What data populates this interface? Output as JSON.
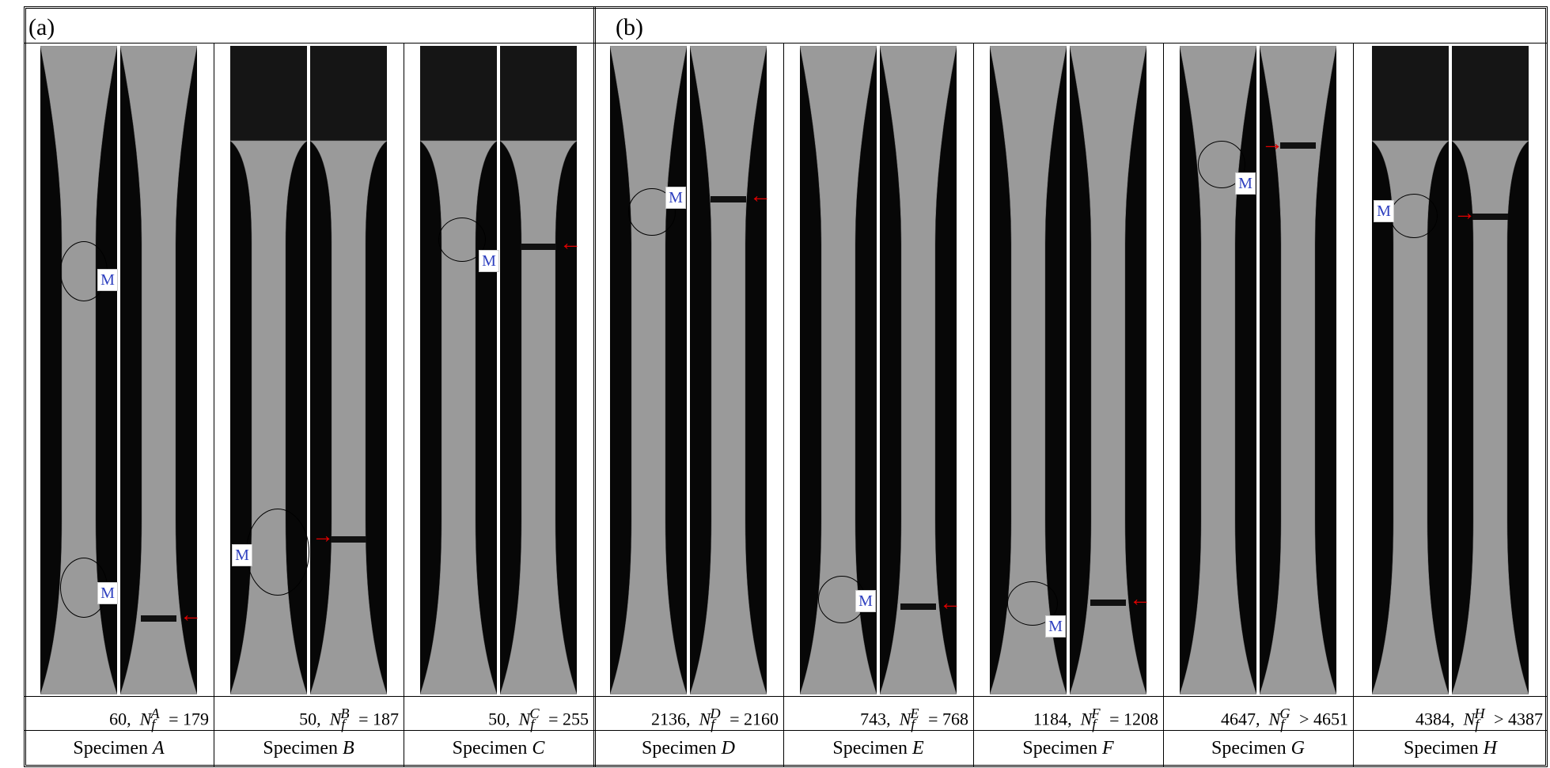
{
  "panels": {
    "a": "(a)",
    "b": "(b)"
  },
  "marker_label": "M",
  "colors": {
    "crack_arrow": "#e00000",
    "marker_text": "#2d3fbf"
  },
  "specimens": [
    {
      "id": "A",
      "prefix": "Specimen",
      "cycles": "60,",
      "nf_sym": "N",
      "nf_sub": "f",
      "nf_sup": "A",
      "nf_rel": "=",
      "nf_val": "179"
    },
    {
      "id": "B",
      "prefix": "Specimen",
      "cycles": "50,",
      "nf_sym": "N",
      "nf_sub": "f",
      "nf_sup": "B",
      "nf_rel": "=",
      "nf_val": "187"
    },
    {
      "id": "C",
      "prefix": "Specimen",
      "cycles": "50,",
      "nf_sym": "N",
      "nf_sub": "f",
      "nf_sup": "C",
      "nf_rel": "=",
      "nf_val": "255"
    },
    {
      "id": "D",
      "prefix": "Specimen",
      "cycles": "2136,",
      "nf_sym": "N",
      "nf_sub": "f",
      "nf_sup": "D",
      "nf_rel": "=",
      "nf_val": "2160"
    },
    {
      "id": "E",
      "prefix": "Specimen",
      "cycles": "743,",
      "nf_sym": "N",
      "nf_sub": "f",
      "nf_sup": "E",
      "nf_rel": "=",
      "nf_val": "768"
    },
    {
      "id": "F",
      "prefix": "Specimen",
      "cycles": "1184,",
      "nf_sym": "N",
      "nf_sub": "f",
      "nf_sup": "F",
      "nf_rel": "=",
      "nf_val": "1208"
    },
    {
      "id": "G",
      "prefix": "Specimen",
      "cycles": "4647,",
      "nf_sym": "N",
      "nf_sub": "f",
      "nf_sup": "G",
      "nf_rel": ">",
      "nf_val": "4651"
    },
    {
      "id": "H",
      "prefix": "Specimen",
      "cycles": "4384,",
      "nf_sym": "N",
      "nf_sub": "f",
      "nf_sup": "H",
      "nf_rel": ">",
      "nf_val": "4387"
    }
  ]
}
